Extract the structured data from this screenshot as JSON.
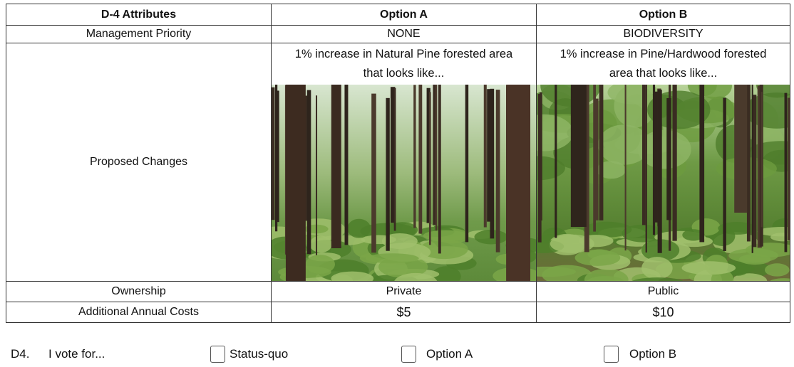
{
  "table": {
    "header": [
      "D-4 Attributes",
      "Option A",
      "Option B"
    ],
    "rows": [
      [
        "Management Priority",
        "NONE",
        "BIODIVERSITY"
      ],
      [
        "Proposed Changes",
        "1% increase in Natural Pine forested area that looks like...",
        "1% increase in Pine/Hardwood forested area that looks like..."
      ],
      [
        "Ownership",
        "Private",
        "Public"
      ],
      [
        "Additional Annual Costs",
        "$5",
        "$10"
      ]
    ]
  },
  "question": {
    "number": "D4.",
    "prompt": "I vote for...",
    "options": [
      "Status-quo",
      "Option A",
      "Option B"
    ]
  }
}
